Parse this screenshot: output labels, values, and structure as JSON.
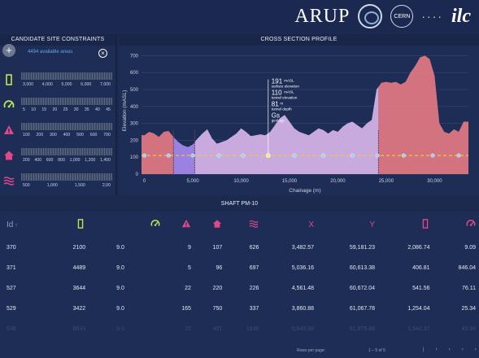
{
  "logos": {
    "arup": "ARUP",
    "cern": "CERN",
    "ilc": "ilc"
  },
  "left": {
    "title": "CANDIDATE SITE CONSTRAINTS",
    "areas": "4494 available areas",
    "rows": [
      {
        "icon": "stripe-icon",
        "color": "#c9e24f",
        "ticks": [
          "3,000",
          "4,000",
          "5,000",
          "6,000",
          "7,000"
        ]
      },
      {
        "icon": "gauge-icon",
        "color": "#bde060",
        "ticks": [
          "5",
          "10",
          "15",
          "20",
          "25",
          "30",
          "35",
          "40",
          "45"
        ]
      },
      {
        "icon": "warning-triangle-icon",
        "color": "#e1488a",
        "ticks": [
          "100",
          "200",
          "300",
          "400",
          "500",
          "600",
          "700"
        ]
      },
      {
        "icon": "house-icon",
        "color": "#e1488a",
        "ticks": [
          "200",
          "400",
          "600",
          "800",
          "1,000",
          "1,200",
          "1,400"
        ]
      },
      {
        "icon": "wave-icon",
        "color": "#e1488a",
        "ticks": [
          "500",
          "1,000",
          "1,500",
          "2,00"
        ]
      }
    ]
  },
  "chart": {
    "panel_title": "CROSS SECTION PROFILE",
    "y_ticks": [
      "0",
      "100",
      "200",
      "300",
      "400",
      "500",
      "600",
      "700"
    ],
    "x_ticks": [
      "0",
      "5,000",
      "10,000",
      "15,000",
      "20,000",
      "25,000",
      "30,000"
    ],
    "annotations": [
      {
        "value": "191",
        "unit": "mASL",
        "label": "surface elevation"
      },
      {
        "value": "110",
        "unit": "mASL",
        "label": "tunnel elevation"
      },
      {
        "value": "81",
        "unit": "m",
        "label": "tunnel depth"
      },
      {
        "value": "Gs",
        "unit": "",
        "label": "geology"
      }
    ]
  },
  "chart_data": {
    "type": "area",
    "title": "CROSS SECTION PROFILE",
    "xlabel": "Chainage (m)",
    "ylabel": "Elevation (mASL)",
    "xlim": [
      -300,
      33500
    ],
    "ylim": [
      0,
      750
    ],
    "profile_x": [
      0,
      500,
      1000,
      1500,
      2000,
      2500,
      3000,
      3500,
      4000,
      4500,
      5000,
      5500,
      6000,
      6500,
      7000,
      7500,
      8000,
      8500,
      9000,
      9500,
      10000,
      10500,
      11000,
      11500,
      12000,
      12500,
      13000,
      13500,
      14000,
      14500,
      15000,
      15500,
      16000,
      16500,
      17000,
      17500,
      18000,
      18500,
      19000,
      19500,
      20000,
      20500,
      21000,
      21500,
      22000,
      22500,
      23000,
      23500,
      24000,
      24500,
      25000,
      25500,
      26000,
      26500,
      27000,
      27500,
      28000,
      28500,
      29000,
      29500,
      30000,
      30500,
      31000,
      31500,
      32000,
      32500,
      33000
    ],
    "profile_y": [
      230,
      250,
      240,
      220,
      250,
      255,
      220,
      190,
      170,
      160,
      175,
      210,
      240,
      265,
      210,
      180,
      190,
      200,
      220,
      240,
      270,
      250,
      225,
      230,
      235,
      230,
      250,
      290,
      330,
      350,
      310,
      270,
      250,
      240,
      230,
      250,
      270,
      260,
      240,
      260,
      250,
      280,
      300,
      310,
      290,
      270,
      300,
      320,
      500,
      540,
      545,
      540,
      545,
      530,
      545,
      600,
      640,
      690,
      700,
      680,
      580,
      300,
      250,
      240,
      265,
      250,
      310
    ],
    "tunnel_elevation": 110,
    "segments": [
      {
        "from": -300,
        "to": 3000,
        "color": "#e87b85"
      },
      {
        "from": 3000,
        "to": 5200,
        "color": "#a98bf0"
      },
      {
        "from": 5200,
        "to": 24200,
        "color": "#dbb8ee"
      },
      {
        "from": 24200,
        "to": 33500,
        "color": "#e87b85"
      }
    ],
    "shafts": [
      0,
      2500,
      5000,
      7700,
      10200,
      12800,
      15500,
      18500,
      21500,
      24100,
      26800,
      29800,
      32500
    ],
    "cursor_x": 12800
  },
  "table": {
    "title": "SHAFT PM-10",
    "headers": [
      {
        "text": "Id",
        "sort": "↑"
      },
      {
        "icon": "stripe-icon",
        "color": "#c9e24f"
      },
      {
        "icon": "gauge-icon",
        "color": "#bde060"
      },
      {
        "icon": "warning-triangle-icon",
        "color": "#e1488a"
      },
      {
        "icon": "house-icon",
        "color": "#e1488a"
      },
      {
        "icon": "wave-icon",
        "color": "#e1488a"
      },
      {
        "text": "X",
        "color": "#e1488a"
      },
      {
        "text": "Y",
        "color": "#e1488a"
      },
      {
        "icon": "stripe-icon",
        "color": "#e1488a"
      },
      {
        "icon": "gauge-icon",
        "color": "#e1488a"
      }
    ],
    "rows": [
      [
        "370",
        "2100",
        "9.0",
        "9",
        "107",
        "626",
        "3,482.57",
        "59,181.23",
        "2,086.74",
        "9.09"
      ],
      [
        "371",
        "4489",
        "9.0",
        "5",
        "96",
        "697",
        "5,036.16",
        "60,613.38",
        "406.81",
        "846.04"
      ],
      [
        "527",
        "3644",
        "9.0",
        "22",
        "220",
        "226",
        "4,561.48",
        "60,672.04",
        "541.56",
        "76.11"
      ],
      [
        "529",
        "3422",
        "9.0",
        "165",
        "750",
        "337",
        "3,860.88",
        "61,067.78",
        "1,254.04",
        "25.34"
      ],
      [
        "538",
        "6633",
        "9.0",
        "32",
        "401",
        "1830",
        "5,640.99",
        "61,875.88",
        "1,542.37",
        "43.94"
      ]
    ],
    "rows_per_page": "Rows per page:",
    "range": "1 – 5 of 5"
  }
}
